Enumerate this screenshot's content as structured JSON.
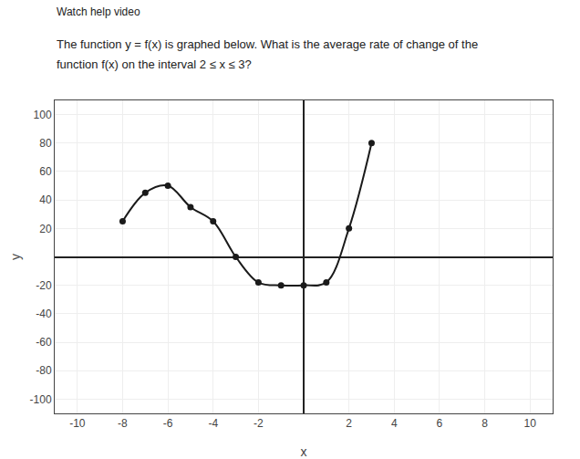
{
  "chart_data": {
    "type": "line",
    "annotations": [
      {
        "text": "Watch help video"
      },
      {
        "text": "The function y = f(x) is graphed below. What is the average rate of change of the"
      },
      {
        "text": "function f(x) on the interval 2 ≤ x ≤ 3?"
      }
    ],
    "x_label": "x",
    "y_label": "y",
    "x": [
      -8,
      -7,
      -6,
      -5,
      -4,
      -3,
      -2,
      -1,
      0,
      1,
      2,
      3
    ],
    "values": [
      25,
      45,
      50,
      35,
      25,
      0,
      -18,
      -20,
      -20,
      -18,
      20,
      80
    ],
    "color": "#1a1a1a",
    "marker": "circle",
    "line_style": "spline",
    "xlim": [
      -11,
      11
    ],
    "ylim": [
      -110,
      110
    ],
    "xticks": [
      -10,
      -8,
      -6,
      -4,
      -2,
      2,
      4,
      6,
      8,
      10
    ],
    "yticks": [
      -100,
      -80,
      -60,
      -40,
      -20,
      20,
      40,
      60,
      80,
      100
    ],
    "grid": true
  }
}
